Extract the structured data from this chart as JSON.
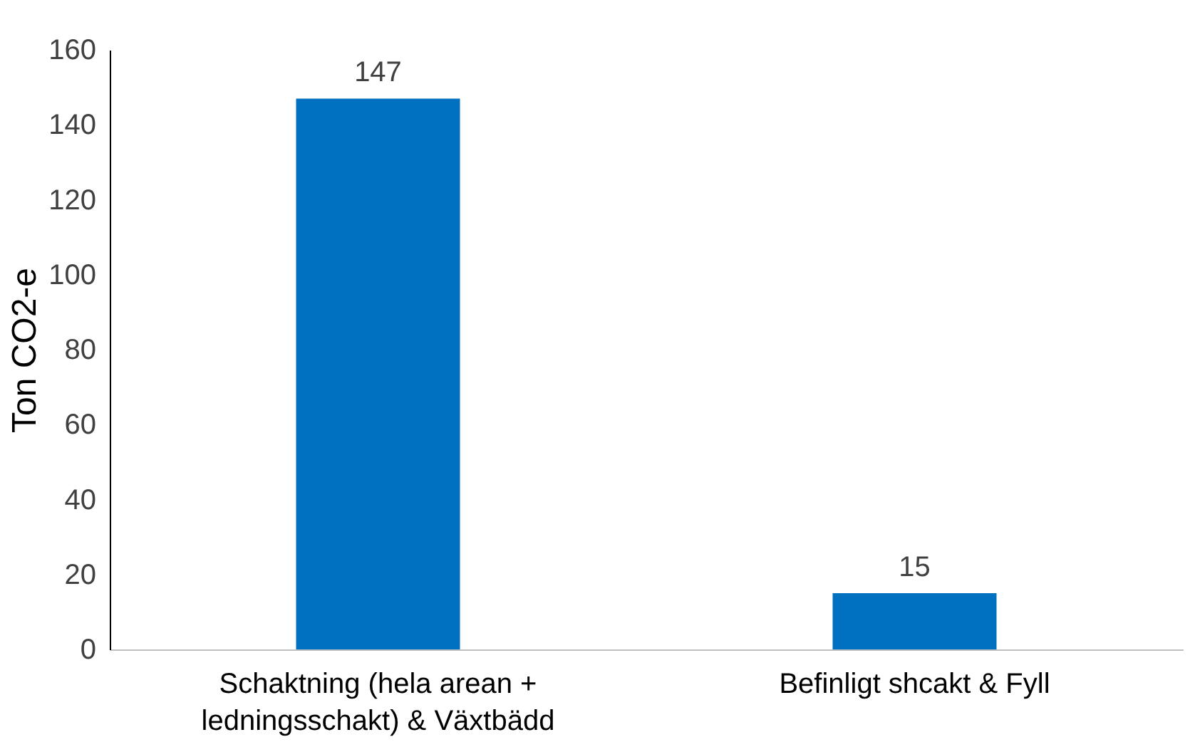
{
  "chart_data": {
    "type": "bar",
    "ylabel": "Ton CO2-e",
    "categories": [
      "Schaktning (hela arean + ledningsschakt) & Växtbädd",
      "Befinligt shcakt & Fyll"
    ],
    "values": [
      147,
      15
    ],
    "color": "#0070c0",
    "data_labels": true,
    "ylim": [
      0,
      160
    ],
    "yticks": [
      0,
      20,
      40,
      60,
      80,
      100,
      120,
      140,
      160
    ],
    "grid": false
  }
}
